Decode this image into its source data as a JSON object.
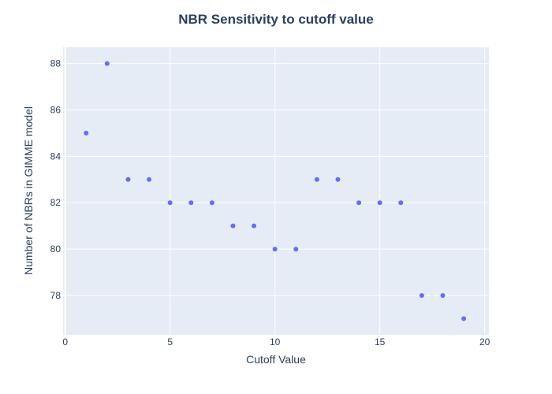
{
  "chart_data": {
    "type": "scatter",
    "title": "NBR Sensitivity to cutoff value",
    "xlabel": "Cutoff Value",
    "ylabel": "Number of NBRs in GIMME model",
    "x": [
      1,
      2,
      3,
      4,
      5,
      6,
      7,
      8,
      9,
      10,
      11,
      12,
      13,
      14,
      15,
      16,
      17,
      18,
      19
    ],
    "y": [
      85,
      88,
      83,
      83,
      82,
      82,
      82,
      81,
      81,
      80,
      80,
      83,
      83,
      82,
      82,
      82,
      78,
      78,
      77
    ],
    "xlim": [
      -0.1,
      20.2
    ],
    "ylim": [
      76.3,
      88.7
    ],
    "xticks": [
      0,
      5,
      10,
      15,
      20
    ],
    "yticks": [
      78,
      80,
      82,
      84,
      86,
      88
    ],
    "grid": true,
    "colors": {
      "plot_background": "#e5ecf6",
      "marker": "#636efa",
      "text": "#2a3f5f"
    }
  }
}
